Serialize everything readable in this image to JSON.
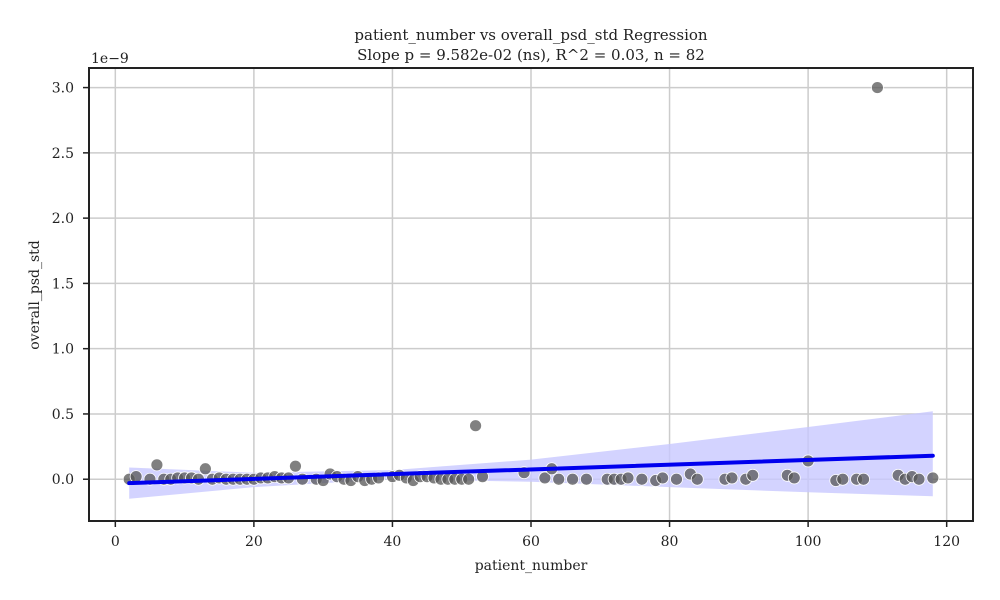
{
  "chart_data": {
    "type": "scatter",
    "title": "patient_number vs overall_psd_std Regression",
    "subtitle": "Slope p = 9.582e-02 (ns), R^2 = 0.03, n = 82",
    "xlabel": "patient_number",
    "ylabel": "overall_psd_std",
    "y_offset_label": "1e−9",
    "xlim": [
      -3.8,
      123.8
    ],
    "ylim": [
      -0.32,
      3.15
    ],
    "x_ticks": [
      0,
      20,
      40,
      60,
      80,
      100,
      120
    ],
    "x_tick_labels": [
      "0",
      "20",
      "40",
      "60",
      "80",
      "100",
      "120"
    ],
    "y_ticks": [
      0.0,
      0.5,
      1.0,
      1.5,
      2.0,
      2.5,
      3.0
    ],
    "y_tick_labels": [
      "0.0",
      "0.5",
      "1.0",
      "1.5",
      "2.0",
      "2.5",
      "3.0"
    ],
    "grid": true,
    "point_color": "#555555",
    "line_color": "#0000ee",
    "band_color": "#c8c8ff",
    "regression": {
      "x0": 2,
      "y0": -0.03,
      "x1": 118,
      "y1": 0.18
    },
    "confidence_band": {
      "x": [
        2,
        20,
        40,
        60,
        80,
        100,
        118
      ],
      "lower": [
        -0.15,
        -0.06,
        0.0,
        -0.02,
        -0.06,
        -0.1,
        -0.13
      ],
      "upper": [
        0.09,
        0.05,
        0.07,
        0.15,
        0.27,
        0.4,
        0.52
      ]
    },
    "points": [
      {
        "x": 2,
        "y": 0.0
      },
      {
        "x": 3,
        "y": 0.02
      },
      {
        "x": 5,
        "y": 0.0
      },
      {
        "x": 6,
        "y": 0.11
      },
      {
        "x": 7,
        "y": 0.0
      },
      {
        "x": 8,
        "y": 0.0
      },
      {
        "x": 9,
        "y": 0.01
      },
      {
        "x": 10,
        "y": 0.01
      },
      {
        "x": 11,
        "y": 0.01
      },
      {
        "x": 12,
        "y": 0.0
      },
      {
        "x": 13,
        "y": 0.08
      },
      {
        "x": 14,
        "y": 0.0
      },
      {
        "x": 15,
        "y": 0.01
      },
      {
        "x": 16,
        "y": 0.0
      },
      {
        "x": 17,
        "y": 0.0
      },
      {
        "x": 18,
        "y": 0.0
      },
      {
        "x": 19,
        "y": 0.0
      },
      {
        "x": 20,
        "y": 0.0
      },
      {
        "x": 21,
        "y": 0.01
      },
      {
        "x": 22,
        "y": 0.01
      },
      {
        "x": 23,
        "y": 0.02
      },
      {
        "x": 24,
        "y": 0.01
      },
      {
        "x": 25,
        "y": 0.01
      },
      {
        "x": 26,
        "y": 0.1
      },
      {
        "x": 27,
        "y": 0.0
      },
      {
        "x": 29,
        "y": 0.0
      },
      {
        "x": 30,
        "y": -0.01
      },
      {
        "x": 31,
        "y": 0.04
      },
      {
        "x": 32,
        "y": 0.02
      },
      {
        "x": 33,
        "y": 0.0
      },
      {
        "x": 34,
        "y": -0.01
      },
      {
        "x": 35,
        "y": 0.02
      },
      {
        "x": 36,
        "y": -0.01
      },
      {
        "x": 37,
        "y": 0.0
      },
      {
        "x": 38,
        "y": 0.01
      },
      {
        "x": 40,
        "y": 0.02
      },
      {
        "x": 41,
        "y": 0.03
      },
      {
        "x": 42,
        "y": 0.01
      },
      {
        "x": 43,
        "y": -0.01
      },
      {
        "x": 44,
        "y": 0.02
      },
      {
        "x": 45,
        "y": 0.02
      },
      {
        "x": 46,
        "y": 0.01
      },
      {
        "x": 47,
        "y": 0.0
      },
      {
        "x": 48,
        "y": 0.0
      },
      {
        "x": 49,
        "y": 0.0
      },
      {
        "x": 50,
        "y": 0.0
      },
      {
        "x": 51,
        "y": 0.0
      },
      {
        "x": 52,
        "y": 0.41
      },
      {
        "x": 53,
        "y": 0.02
      },
      {
        "x": 59,
        "y": 0.05
      },
      {
        "x": 62,
        "y": 0.01
      },
      {
        "x": 63,
        "y": 0.08
      },
      {
        "x": 64,
        "y": 0.0
      },
      {
        "x": 66,
        "y": 0.0
      },
      {
        "x": 68,
        "y": 0.0
      },
      {
        "x": 71,
        "y": 0.0
      },
      {
        "x": 72,
        "y": 0.0
      },
      {
        "x": 73,
        "y": 0.0
      },
      {
        "x": 74,
        "y": 0.01
      },
      {
        "x": 76,
        "y": 0.0
      },
      {
        "x": 78,
        "y": -0.01
      },
      {
        "x": 79,
        "y": 0.01
      },
      {
        "x": 81,
        "y": 0.0
      },
      {
        "x": 83,
        "y": 0.04
      },
      {
        "x": 84,
        "y": 0.0
      },
      {
        "x": 88,
        "y": 0.0
      },
      {
        "x": 89,
        "y": 0.01
      },
      {
        "x": 91,
        "y": 0.0
      },
      {
        "x": 92,
        "y": 0.03
      },
      {
        "x": 97,
        "y": 0.03
      },
      {
        "x": 98,
        "y": 0.01
      },
      {
        "x": 100,
        "y": 0.14
      },
      {
        "x": 104,
        "y": -0.01
      },
      {
        "x": 105,
        "y": 0.0
      },
      {
        "x": 107,
        "y": 0.0
      },
      {
        "x": 108,
        "y": 0.0
      },
      {
        "x": 110,
        "y": 3.0
      },
      {
        "x": 113,
        "y": 0.03
      },
      {
        "x": 114,
        "y": 0.0
      },
      {
        "x": 115,
        "y": 0.02
      },
      {
        "x": 116,
        "y": 0.0
      },
      {
        "x": 118,
        "y": 0.01
      }
    ]
  }
}
